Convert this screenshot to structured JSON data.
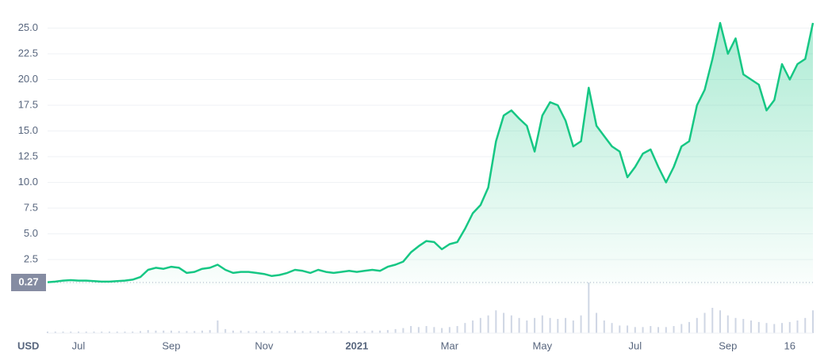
{
  "chart_data": {
    "type": "area",
    "currency": "USD",
    "price_label": 0.27,
    "categories": [
      null,
      null,
      null,
      null,
      "Jul",
      null,
      null,
      null,
      null,
      null,
      null,
      null,
      null,
      null,
      null,
      null,
      "Sep",
      null,
      null,
      null,
      null,
      null,
      null,
      null,
      null,
      null,
      null,
      null,
      "Nov",
      null,
      null,
      null,
      null,
      null,
      null,
      null,
      null,
      null,
      null,
      null,
      "2021",
      null,
      null,
      null,
      null,
      null,
      null,
      null,
      null,
      null,
      null,
      null,
      "Mar",
      null,
      null,
      null,
      null,
      null,
      null,
      null,
      null,
      null,
      null,
      null,
      "May",
      null,
      null,
      null,
      null,
      null,
      null,
      null,
      null,
      null,
      null,
      null,
      "Jul",
      null,
      null,
      null,
      null,
      null,
      null,
      null,
      null,
      null,
      null,
      null,
      "Sep",
      null,
      null,
      null,
      null,
      null,
      null,
      null,
      "16",
      null,
      null,
      null
    ],
    "series": [
      {
        "color": "#16c784",
        "values": [
          0.3,
          0.35,
          0.45,
          0.5,
          0.45,
          0.45,
          0.4,
          0.35,
          0.35,
          0.4,
          0.45,
          0.55,
          0.8,
          1.5,
          1.7,
          1.6,
          1.8,
          1.7,
          1.2,
          1.3,
          1.6,
          1.7,
          2.0,
          1.5,
          1.2,
          1.3,
          1.3,
          1.2,
          1.1,
          0.9,
          1.0,
          1.2,
          1.5,
          1.4,
          1.2,
          1.5,
          1.3,
          1.2,
          1.3,
          1.4,
          1.3,
          1.4,
          1.5,
          1.4,
          1.8,
          2.0,
          2.3,
          3.2,
          3.8,
          4.3,
          4.2,
          3.5,
          4.0,
          4.2,
          5.5,
          7.0,
          7.8,
          9.5,
          14.0,
          16.5,
          17.0,
          16.2,
          15.5,
          13.0,
          16.5,
          17.8,
          17.5,
          16.0,
          13.5,
          14.0,
          19.2,
          15.5,
          14.5,
          13.5,
          13.0,
          10.5,
          11.5,
          12.8,
          13.2,
          11.5,
          10.0,
          11.5,
          13.5,
          14.0,
          17.5,
          19.0,
          22.0,
          25.5,
          22.5,
          24.0,
          20.5,
          20.0,
          19.5,
          17.0,
          18.0,
          21.5,
          20.0,
          21.5,
          22.0,
          25.5
        ]
      }
    ],
    "volume": [
      3,
      3,
      3,
      3,
      3,
      3,
      3,
      3,
      3,
      3,
      3,
      3,
      4,
      6,
      5,
      5,
      5,
      4,
      4,
      4,
      5,
      6,
      25,
      8,
      5,
      5,
      4,
      4,
      4,
      4,
      4,
      4,
      5,
      4,
      4,
      4,
      4,
      4,
      4,
      4,
      4,
      4,
      5,
      5,
      6,
      8,
      10,
      14,
      12,
      14,
      12,
      10,
      12,
      14,
      20,
      25,
      30,
      35,
      45,
      40,
      35,
      30,
      25,
      30,
      35,
      30,
      28,
      30,
      25,
      35,
      100,
      40,
      25,
      20,
      15,
      15,
      12,
      12,
      14,
      12,
      12,
      14,
      18,
      22,
      30,
      40,
      50,
      45,
      35,
      30,
      28,
      25,
      22,
      20,
      18,
      20,
      22,
      25,
      30,
      45
    ],
    "ylim": [
      0,
      26.5
    ],
    "yticks": [
      2.5,
      {
        "value": 5,
        "label": "5.0"
      },
      7.5,
      {
        "value": 10,
        "label": "10.0"
      },
      12.5,
      {
        "value": 15,
        "label": "15.0"
      },
      17.5,
      {
        "value": 20,
        "label": "20.0"
      },
      22.5,
      {
        "value": 25,
        "label": "25.0"
      }
    ],
    "grid": true
  }
}
